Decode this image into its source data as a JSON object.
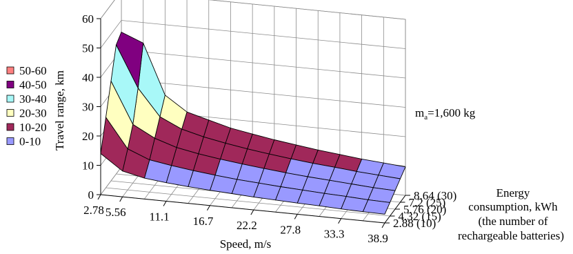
{
  "chart_data": {
    "type": "surface",
    "ylabel": "Travel range, km",
    "xlabel": "Speed, m/s",
    "zlabel_lines": [
      "Energy",
      "consumption, kWh",
      "(the number of",
      "rechargeable batteries)"
    ],
    "annotation": {
      "main": "m",
      "sub": "a",
      "rest": "=1,600 kg"
    },
    "zlim": [
      0,
      60
    ],
    "z_ticks": [
      "0",
      "10",
      "20",
      "30",
      "40",
      "50",
      "60"
    ],
    "x_ticks": [
      "2.78",
      "5.56",
      "11.1",
      "16.7",
      "22.2",
      "27.8",
      "33.3",
      "38.9"
    ],
    "depth_ticks": [
      "2.88 (10)",
      "4.32 (15)",
      "5.76 (20)",
      "7.2 (25)",
      "8.64 (30)"
    ],
    "legend": [
      {
        "label": "50-60",
        "color": "#ff8080"
      },
      {
        "label": "40-50",
        "color": "#800080"
      },
      {
        "label": "30-40",
        "color": "#a8f8f8"
      },
      {
        "label": "20-30",
        "color": "#ffffc0"
      },
      {
        "label": "10-20",
        "color": "#a0285a"
      },
      {
        "label": "0-10",
        "color": "#9999ff"
      }
    ],
    "speeds": [
      2.78,
      5.56,
      8.33,
      11.1,
      13.9,
      16.7,
      19.4,
      22.2,
      25.0,
      27.8,
      30.6,
      33.3,
      36.1,
      38.9
    ],
    "energies": [
      2.88,
      4.32,
      5.76,
      7.2,
      8.64
    ],
    "values": [
      [
        14,
        8.8,
        7.1,
        6.3,
        5.7,
        5.2,
        4.8,
        4.4,
        4.1,
        3.8,
        3.6,
        3.3,
        3.1,
        3.0
      ],
      [
        24,
        14,
        11,
        9.8,
        8.8,
        8.0,
        7.3,
        6.8,
        6.3,
        5.9,
        5.5,
        5.2,
        4.8,
        4.6
      ],
      [
        34,
        20,
        16,
        13.6,
        12.2,
        11.1,
        10.2,
        9.4,
        8.7,
        8.1,
        7.6,
        7.1,
        6.6,
        6.3
      ],
      [
        44,
        30,
        21,
        17.5,
        15.6,
        14.2,
        13.0,
        12.0,
        11.1,
        10.3,
        9.7,
        9.0,
        8.5,
        8.0
      ],
      [
        46,
        43,
        26,
        21,
        19,
        17,
        15.7,
        14.5,
        13.5,
        12.5,
        11.7,
        10.9,
        10.3,
        9.7
      ]
    ]
  }
}
